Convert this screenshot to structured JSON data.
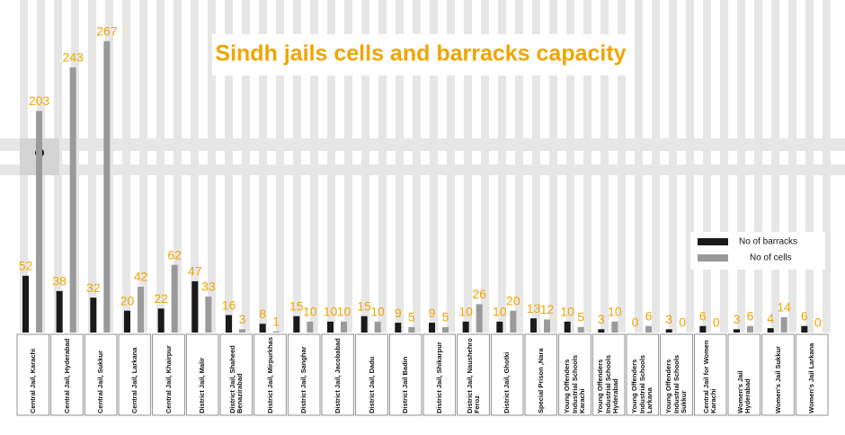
{
  "chart_data": {
    "type": "bar",
    "title": "Sindh jails cells and barracks capacity",
    "categories": [
      "Central Jail, Karachi",
      "Central Jail, Hyderabad",
      "Central Jail, Sukkur",
      "Central Jail, Larkana",
      "Central Jail, Khairpur",
      "District Jail, Malir",
      "District Jail, Shaheed Benazirabad",
      "District Jail, Mirpurkhas",
      "District Jail, Sanghar",
      "District Jail, Jacobabad",
      "District Jail, Dadu",
      "District Jail Badin",
      "District Jail, Shikarpur",
      "District Jail, Naushehro Feroz",
      "District Jail, Ghotki",
      "Special Prison ,Nara",
      "Young Offenders Industrial Schools Karachi",
      "Young Offenders Industrial Schools Hyderabad",
      "Young Offenders Industrial Schools Larkana",
      "Young Offenders Industrial Schools Sukkur",
      "Central Jail for Women Karachi",
      "Women's Jail Hyderabad",
      "Women's Jail Sukkur",
      "Women's Jail Larkana"
    ],
    "series": [
      {
        "name": "No of barracks",
        "color": "#1a1a1a",
        "values": [
          52,
          38,
          32,
          20,
          22,
          47,
          16,
          8,
          15,
          10,
          15,
          9,
          9,
          10,
          10,
          13,
          10,
          3,
          0,
          3,
          6,
          3,
          4,
          6
        ]
      },
      {
        "name": "No of cells",
        "color": "#9a9a9a",
        "values": [
          203,
          243,
          267,
          42,
          62,
          33,
          3,
          1,
          10,
          10,
          10,
          5,
          5,
          26,
          20,
          12,
          5,
          10,
          6,
          0,
          0,
          6,
          14,
          0
        ]
      }
    ],
    "ylim": [
      0,
      280
    ],
    "label_color": "#f0a500",
    "legend": "right"
  }
}
